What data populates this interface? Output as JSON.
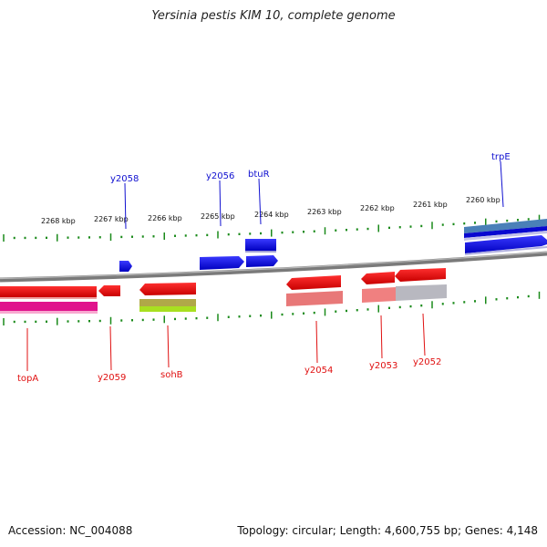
{
  "title": "Yersinia pestis KIM 10, complete genome",
  "footer": {
    "accession": "Accession: NC_004088",
    "summary": "Topology: circular; Length: 4,600,755 bp; Genes: 4,148"
  },
  "scale_labels": [
    "2268 kbp",
    "2267 kbp",
    "2266 kbp",
    "2265 kbp",
    "2264 kbp",
    "2263 kbp",
    "2262 kbp",
    "2261 kbp",
    "2260 kbp"
  ],
  "gene_labels_top": [
    "y2058",
    "y2056",
    "btuR",
    "trpE"
  ],
  "gene_labels_bottom": [
    "topA",
    "y2059",
    "sohB",
    "y2054",
    "y2053",
    "y2052"
  ],
  "colors": {
    "forward": "#1818e8",
    "reverse": "#e81010",
    "tick": "#1a8a1a",
    "backbone": "#808080"
  }
}
